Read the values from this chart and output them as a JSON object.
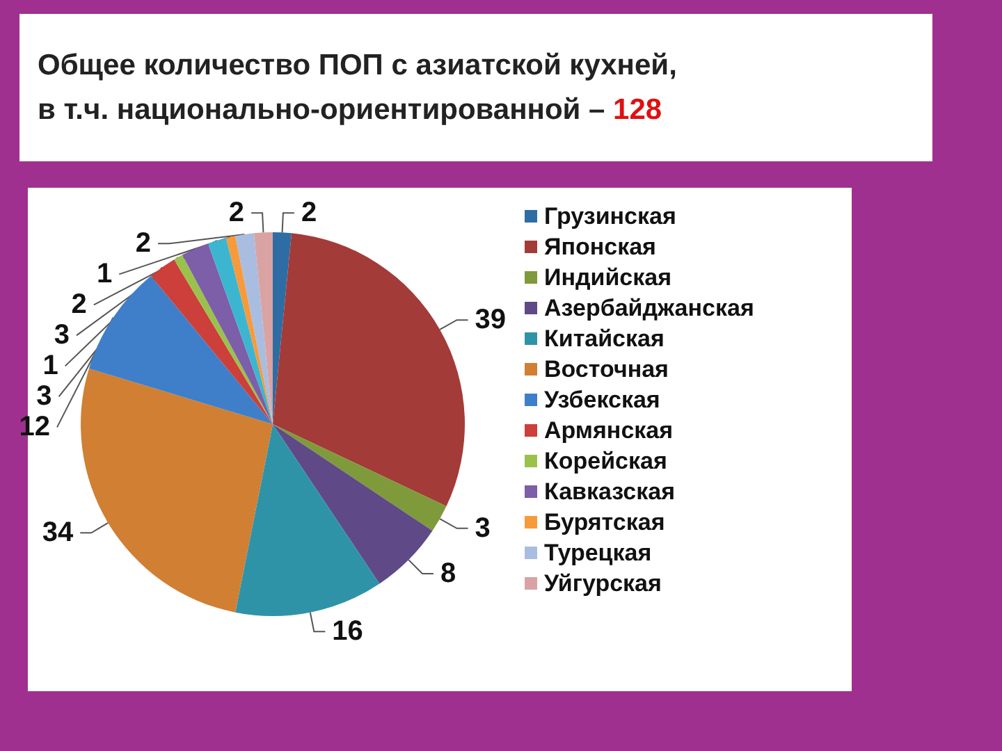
{
  "chart_data": {
    "type": "pie",
    "title": "Общее количество ПОП с азиатской кухней,\nв т.ч. национально-ориентированной – 128",
    "categories": [
      "Грузинская",
      "Японская",
      "Индийская",
      "Азербайджанская",
      "Китайская",
      "Восточная",
      "Узбекская",
      "Армянская",
      "Корейская",
      "Кавказская",
      null,
      "Бурятская",
      "Турецкая",
      "Уйгурская"
    ],
    "values": [
      2,
      39,
      3,
      8,
      16,
      34,
      12,
      3,
      1,
      3,
      2,
      1,
      2,
      2
    ],
    "colors": [
      "#2e6da4",
      "#a33b38",
      "#7f9a3a",
      "#5f4a87",
      "#2f93a8",
      "#d07f33",
      "#3f7fc9",
      "#cc3f3a",
      "#9bc14d",
      "#7d5ea8",
      "#3cb6d0",
      "#f79a3b",
      "#a9bde0",
      "#d9a3a3"
    ],
    "data_labels": true,
    "legend": "right"
  }
}
